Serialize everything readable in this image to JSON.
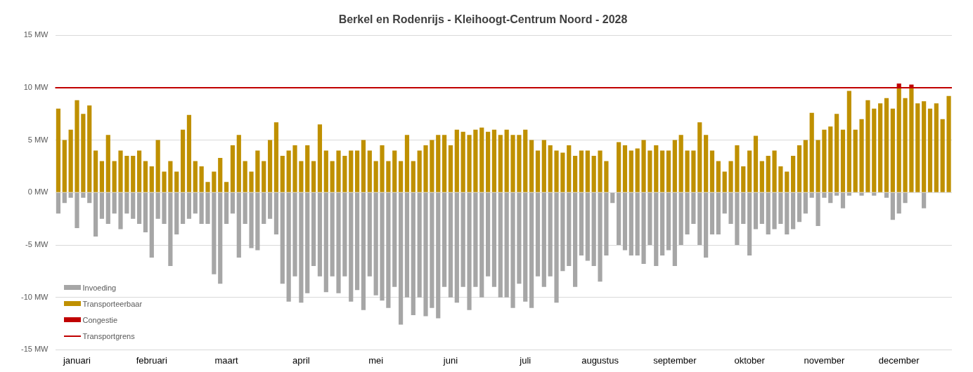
{
  "chart_data": {
    "type": "bar",
    "title": "Berkel en Rodenrijs - Kleihoogt-Centrum Noord - 2028",
    "categories": [
      null,
      null,
      null,
      "januari",
      null,
      null,
      null,
      null,
      null,
      null,
      null,
      null,
      null,
      null,
      null,
      "februari",
      null,
      null,
      null,
      null,
      null,
      null,
      null,
      null,
      null,
      null,
      null,
      "maart",
      null,
      null,
      null,
      null,
      null,
      null,
      null,
      null,
      null,
      null,
      null,
      "april",
      null,
      null,
      null,
      null,
      null,
      null,
      null,
      null,
      null,
      null,
      null,
      "mei",
      null,
      null,
      null,
      null,
      null,
      null,
      null,
      null,
      null,
      null,
      null,
      "juni",
      null,
      null,
      null,
      null,
      null,
      null,
      null,
      null,
      null,
      null,
      null,
      "juli",
      null,
      null,
      null,
      null,
      null,
      null,
      null,
      null,
      null,
      null,
      null,
      "augustus",
      null,
      null,
      null,
      null,
      null,
      null,
      null,
      null,
      null,
      null,
      null,
      "september",
      null,
      null,
      null,
      null,
      null,
      null,
      null,
      null,
      null,
      null,
      null,
      "oktober",
      null,
      null,
      null,
      null,
      null,
      null,
      null,
      null,
      null,
      null,
      null,
      "november",
      null,
      null,
      null,
      null,
      null,
      null,
      null,
      null,
      null,
      null,
      null,
      "december",
      null,
      null,
      null,
      null,
      null,
      null,
      null,
      null
    ],
    "series": [
      {
        "name": "Invoeding",
        "color": "#a6a6a6",
        "values": [
          -2,
          -1,
          -0.5,
          -3.4,
          -0.5,
          -1,
          -4.2,
          -2.5,
          -3,
          -2,
          -3.5,
          -2,
          -2.5,
          -3,
          -3.8,
          -6.2,
          -2.5,
          -3,
          -7,
          -4,
          -3,
          -2.5,
          -2,
          -3,
          -3,
          -7.8,
          -8.7,
          -3,
          -2,
          -6.2,
          -3,
          -5.3,
          -5.5,
          -3,
          -2.5,
          -4,
          -8.7,
          -10.4,
          -8,
          -10.5,
          -9.6,
          -7,
          -8,
          -9.5,
          -8,
          -9.6,
          -8,
          -10.4,
          -9.3,
          -11.2,
          -8,
          -9.8,
          -10.3,
          -11,
          -9,
          -12.6,
          -10,
          -11.7,
          -10,
          -11.8,
          -11,
          -12,
          -9,
          -10,
          -10.5,
          -9,
          -11.2,
          -9,
          -10,
          -8,
          -9,
          -10,
          -10,
          -11,
          -8.7,
          -10.4,
          -11,
          -8,
          -9,
          -8,
          -10.5,
          -7.5,
          -7,
          -9,
          -6,
          -6.5,
          -7,
          -8.5,
          -6,
          -1,
          -5,
          -5.5,
          -6,
          -6,
          -6.8,
          -5,
          -7,
          -6,
          -5.5,
          -7,
          -5,
          -4,
          -3,
          -5,
          -6.2,
          -4,
          -4,
          -2,
          -3,
          -5,
          -3,
          -6,
          -3.5,
          -3,
          -4,
          -3.5,
          -3,
          -4,
          -3.5,
          -2.8,
          -2,
          -0.5,
          -3.2,
          -0.5,
          -1,
          -0.3,
          -1.5,
          -0.3,
          null,
          -0.3,
          null,
          -0.3,
          null,
          -0.5,
          -2.6,
          -2,
          -1,
          null,
          null,
          -1.5,
          null,
          null,
          null,
          null
        ]
      },
      {
        "name": "Transporteerbaar",
        "color": "#bf9000",
        "values": [
          8,
          5,
          6,
          8.8,
          7.5,
          8.3,
          4,
          3,
          5.5,
          3,
          4,
          3.5,
          3.5,
          4,
          3,
          2.5,
          5,
          2,
          3,
          2,
          6,
          7.4,
          3,
          2.5,
          1,
          2,
          3.3,
          1,
          4.5,
          5.5,
          3,
          2,
          4,
          3,
          5,
          6.7,
          3.5,
          4,
          4.5,
          3,
          4.5,
          3,
          6.5,
          4,
          3,
          4,
          3.5,
          4,
          4,
          5,
          4,
          3,
          4.5,
          3,
          4,
          3,
          5.5,
          3,
          4,
          4.5,
          5,
          5.5,
          5.5,
          4.5,
          6,
          5.8,
          5.5,
          6,
          6.2,
          5.8,
          6,
          5.5,
          6,
          5.5,
          5.5,
          6,
          5,
          4,
          5,
          4.5,
          4,
          3.8,
          4.5,
          3.5,
          4,
          4,
          3.5,
          4,
          3,
          0,
          4.8,
          4.5,
          4,
          4.2,
          5,
          4,
          4.5,
          4,
          4,
          5,
          5.5,
          4,
          4,
          6.7,
          5.5,
          4,
          3,
          2,
          3,
          4.5,
          2.5,
          4,
          5.4,
          3,
          3.5,
          4,
          2.5,
          2,
          3.5,
          4.5,
          5,
          7.6,
          5,
          6,
          6.3,
          7.5,
          6,
          9.7,
          6,
          7,
          8.8,
          8,
          8.5,
          9,
          8,
          10,
          9,
          10,
          8.5,
          8.7,
          8,
          8.5,
          7,
          9.2
        ]
      },
      {
        "name": "Congestie",
        "color": "#c00000",
        "values": [
          null,
          null,
          null,
          null,
          null,
          null,
          null,
          null,
          null,
          null,
          null,
          null,
          null,
          null,
          null,
          null,
          null,
          null,
          null,
          null,
          null,
          null,
          null,
          null,
          null,
          null,
          null,
          null,
          null,
          null,
          null,
          null,
          null,
          null,
          null,
          null,
          null,
          null,
          null,
          null,
          null,
          null,
          null,
          null,
          null,
          null,
          null,
          null,
          null,
          null,
          null,
          null,
          null,
          null,
          null,
          null,
          null,
          null,
          null,
          null,
          null,
          null,
          null,
          null,
          null,
          null,
          null,
          null,
          null,
          null,
          null,
          null,
          null,
          null,
          null,
          null,
          null,
          null,
          null,
          null,
          null,
          null,
          null,
          null,
          null,
          null,
          null,
          null,
          null,
          null,
          null,
          null,
          null,
          null,
          null,
          null,
          null,
          null,
          null,
          null,
          null,
          null,
          null,
          null,
          null,
          null,
          null,
          null,
          null,
          null,
          null,
          null,
          null,
          null,
          null,
          null,
          null,
          null,
          null,
          null,
          null,
          null,
          null,
          null,
          null,
          null,
          null,
          null,
          null,
          null,
          null,
          null,
          null,
          null,
          null,
          0.4,
          null,
          0.3,
          null,
          null,
          null,
          null,
          null,
          null
        ]
      }
    ],
    "stacked": true,
    "ylim": [
      -15,
      15
    ],
    "yticks": [
      {
        "value": -15,
        "label": "-15 MW"
      },
      {
        "value": -10,
        "label": "-10 MW"
      },
      {
        "value": -5,
        "label": "-5 MW"
      },
      {
        "value": 0,
        "label": "0 MW"
      },
      {
        "value": 5,
        "label": "5 MW"
      },
      {
        "value": 10,
        "label": "10 MW"
      },
      {
        "value": 15,
        "label": "15 MW"
      }
    ],
    "grid": "y",
    "legend": "bottom left",
    "ref_lines": [
      {
        "axis": "y",
        "value": 10,
        "label": "Transportgrens",
        "color": "#c00000"
      }
    ]
  }
}
